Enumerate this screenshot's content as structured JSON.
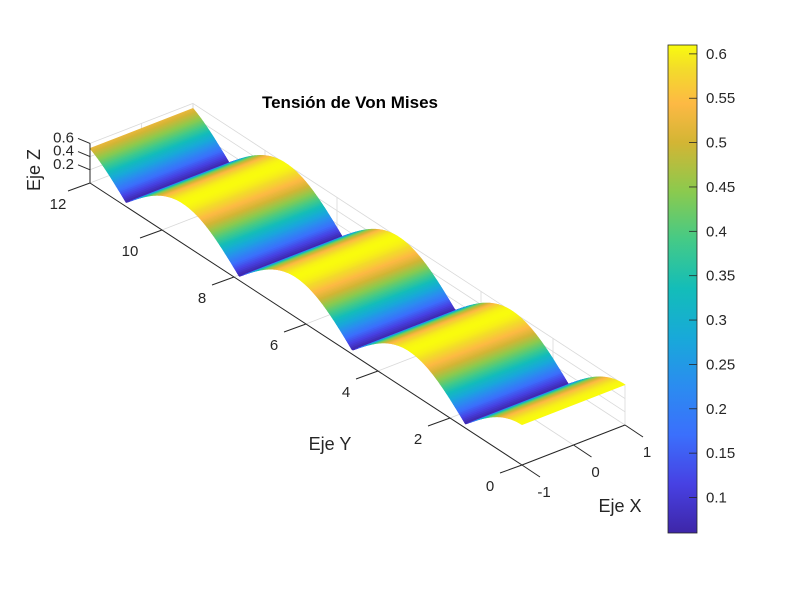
{
  "chart_data": {
    "type": "surface",
    "title": "Tensión de Von Mises",
    "xlabel": "Eje X",
    "ylabel": "Eje Y",
    "zlabel": "Eje Z",
    "x_ticks": [
      -1,
      0,
      1
    ],
    "y_ticks": [
      0,
      2,
      4,
      6,
      8,
      10,
      12
    ],
    "z_ticks": [
      0.2,
      0.4,
      0.6
    ],
    "xlim": [
      -1,
      1
    ],
    "ylim": [
      0,
      12
    ],
    "zlim": [
      0,
      0.6
    ],
    "grid": true,
    "colormap": "parula",
    "colorbar": {
      "ticks": [
        0.1,
        0.15,
        0.2,
        0.25,
        0.3,
        0.35,
        0.4,
        0.45,
        0.5,
        0.55,
        0.6
      ],
      "tick_labels": [
        "0.1",
        "0.15",
        "0.2",
        "0.25",
        "0.3",
        "0.35",
        "0.4",
        "0.45",
        "0.5",
        "0.55",
        "0.6"
      ],
      "range": [
        0.06,
        0.61
      ]
    },
    "surface": {
      "description": "z depends only on y; periodic with period ~pi, peaks near y = 0, 3.1, 6.3, 9.4, 12.2 and valleys near y = 1.6, 4.7, 7.9, 11.0",
      "y": [
        0,
        0.5,
        1.0,
        1.57,
        2.0,
        2.5,
        3.14,
        3.5,
        4.0,
        4.71,
        5.5,
        6.28,
        7.0,
        7.85,
        8.5,
        9.42,
        10.0,
        11.0,
        11.5,
        12.0
      ],
      "z": [
        0.61,
        0.54,
        0.36,
        0.06,
        0.29,
        0.5,
        0.61,
        0.58,
        0.42,
        0.06,
        0.45,
        0.61,
        0.48,
        0.06,
        0.38,
        0.61,
        0.52,
        0.06,
        0.32,
        0.53
      ]
    }
  }
}
